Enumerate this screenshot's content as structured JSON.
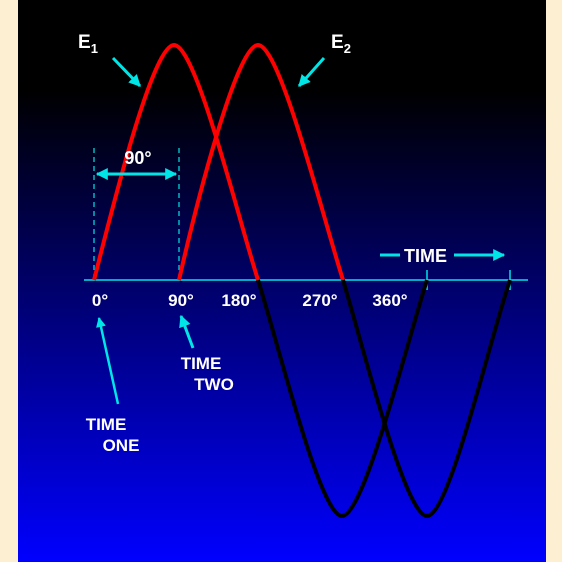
{
  "diagram": {
    "labels": {
      "e1_main": "E",
      "e1_sub": "1",
      "e2_main": "E",
      "e2_sub": "2",
      "phase": "90°",
      "time_axis": "TIME",
      "time_two_line1": "TIME",
      "time_two_line2": "TWO",
      "time_one_line1": "TIME",
      "time_one_line2": "ONE"
    },
    "degree_ticks": [
      "0°",
      "90°",
      "180°",
      "270°",
      "360°"
    ],
    "colors": {
      "background_top": "#000000",
      "background_bottom": "#0000ff",
      "page_margin": "#fdf0d2",
      "positive_half_cycle": "#ff0000",
      "negative_half_cycle": "#000000",
      "annotation": "#00e5e5",
      "text": "#ffffff"
    }
  }
}
